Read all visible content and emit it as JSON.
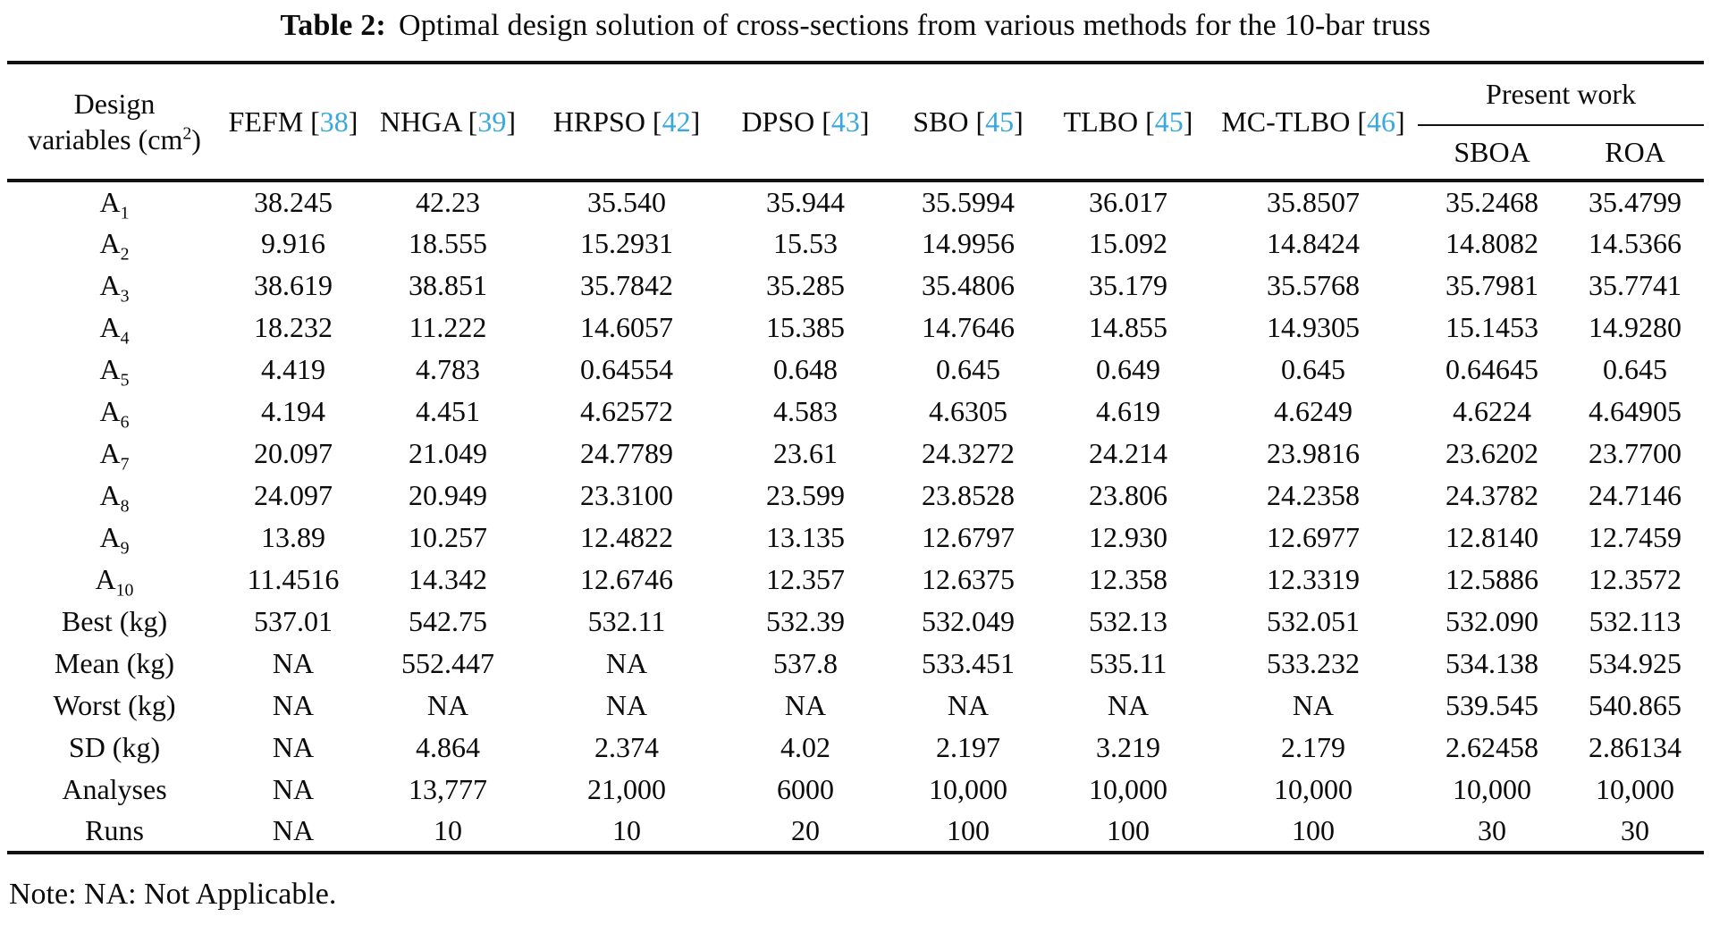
{
  "page": {
    "background": "#ffffff",
    "text_color": "#0b0b0b",
    "citation_color": "#3aa8dc",
    "rule_color": "#121212"
  },
  "title": {
    "label": "Table 2:",
    "text": "Optimal design solution of cross-sections from various methods for the 10-bar truss"
  },
  "table": {
    "corner_header": {
      "line1": "Design",
      "line2_pre": "variables (cm",
      "line2_sup": "2",
      "line2_post": ")"
    },
    "cite_open": "[",
    "cite_close": "]",
    "methods": [
      {
        "name": "FEFM",
        "ref": "38"
      },
      {
        "name": "NHGA",
        "ref": "39"
      },
      {
        "name": "HRPSO",
        "ref": "42"
      },
      {
        "name": "DPSO",
        "ref": "43"
      },
      {
        "name": "SBO",
        "ref": "45"
      },
      {
        "name": "TLBO",
        "ref": "45"
      },
      {
        "name": "MC-TLBO",
        "ref": "46"
      }
    ],
    "present_work": {
      "label": "Present work",
      "columns": [
        "SBOA",
        "ROA"
      ]
    },
    "rows": [
      {
        "label": "A",
        "sub": "1",
        "values": [
          "38.245",
          "42.23",
          "35.540",
          "35.944",
          "35.5994",
          "36.017",
          "35.8507",
          "35.2468",
          "35.4799"
        ]
      },
      {
        "label": "A",
        "sub": "2",
        "values": [
          "9.916",
          "18.555",
          "15.2931",
          "15.53",
          "14.9956",
          "15.092",
          "14.8424",
          "14.8082",
          "14.5366"
        ]
      },
      {
        "label": "A",
        "sub": "3",
        "values": [
          "38.619",
          "38.851",
          "35.7842",
          "35.285",
          "35.4806",
          "35.179",
          "35.5768",
          "35.7981",
          "35.7741"
        ]
      },
      {
        "label": "A",
        "sub": "4",
        "values": [
          "18.232",
          "11.222",
          "14.6057",
          "15.385",
          "14.7646",
          "14.855",
          "14.9305",
          "15.1453",
          "14.9280"
        ]
      },
      {
        "label": "A",
        "sub": "5",
        "values": [
          "4.419",
          "4.783",
          "0.64554",
          "0.648",
          "0.645",
          "0.649",
          "0.645",
          "0.64645",
          "0.645"
        ]
      },
      {
        "label": "A",
        "sub": "6",
        "values": [
          "4.194",
          "4.451",
          "4.62572",
          "4.583",
          "4.6305",
          "4.619",
          "4.6249",
          "4.6224",
          "4.64905"
        ]
      },
      {
        "label": "A",
        "sub": "7",
        "values": [
          "20.097",
          "21.049",
          "24.7789",
          "23.61",
          "24.3272",
          "24.214",
          "23.9816",
          "23.6202",
          "23.7700"
        ]
      },
      {
        "label": "A",
        "sub": "8",
        "values": [
          "24.097",
          "20.949",
          "23.3100",
          "23.599",
          "23.8528",
          "23.806",
          "24.2358",
          "24.3782",
          "24.7146"
        ]
      },
      {
        "label": "A",
        "sub": "9",
        "values": [
          "13.89",
          "10.257",
          "12.4822",
          "13.135",
          "12.6797",
          "12.930",
          "12.6977",
          "12.8140",
          "12.7459"
        ]
      },
      {
        "label": "A",
        "sub": "10",
        "values": [
          "11.4516",
          "14.342",
          "12.6746",
          "12.357",
          "12.6375",
          "12.358",
          "12.3319",
          "12.5886",
          "12.3572"
        ]
      },
      {
        "label": "Best (kg)",
        "sub": "",
        "values": [
          "537.01",
          "542.75",
          "532.11",
          "532.39",
          "532.049",
          "532.13",
          "532.051",
          "532.090",
          "532.113"
        ]
      },
      {
        "label": "Mean (kg)",
        "sub": "",
        "values": [
          "NA",
          "552.447",
          "NA",
          "537.8",
          "533.451",
          "535.11",
          "533.232",
          "534.138",
          "534.925"
        ]
      },
      {
        "label": "Worst (kg)",
        "sub": "",
        "values": [
          "NA",
          "NA",
          "NA",
          "NA",
          "NA",
          "NA",
          "NA",
          "539.545",
          "540.865"
        ]
      },
      {
        "label": "SD (kg)",
        "sub": "",
        "values": [
          "NA",
          "4.864",
          "2.374",
          "4.02",
          "2.197",
          "3.219",
          "2.179",
          "2.62458",
          "2.86134"
        ]
      },
      {
        "label": "Analyses",
        "sub": "",
        "values": [
          "NA",
          "13,777",
          "21,000",
          "6000",
          "10,000",
          "10,000",
          "10,000",
          "10,000",
          "10,000"
        ]
      },
      {
        "label": "Runs",
        "sub": "",
        "values": [
          "NA",
          "10",
          "10",
          "20",
          "100",
          "100",
          "100",
          "30",
          "30"
        ]
      }
    ]
  },
  "note": "Note: NA: Not Applicable."
}
